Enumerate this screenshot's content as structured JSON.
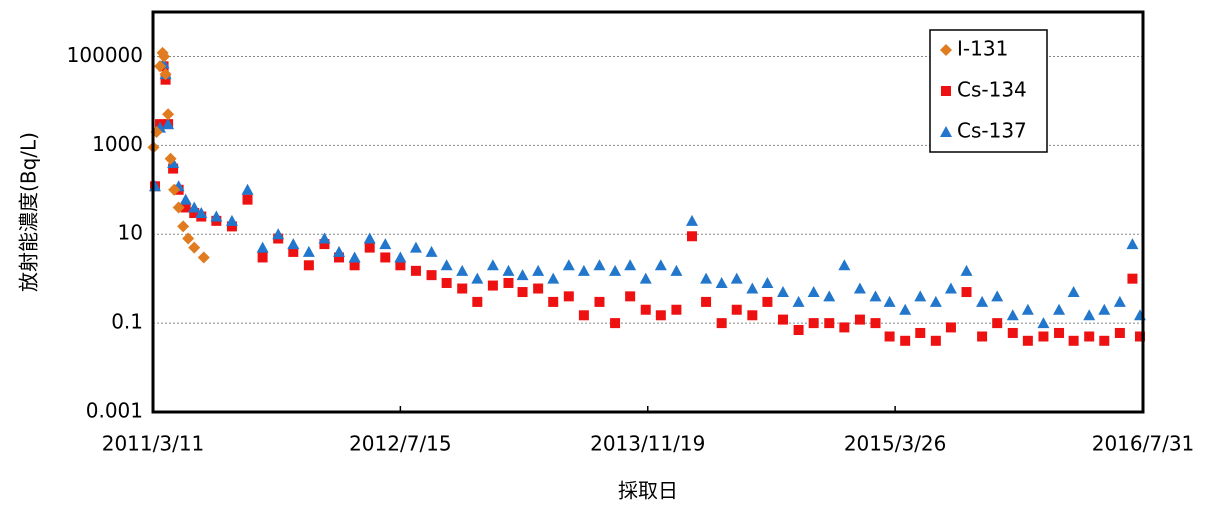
{
  "chart_data": {
    "type": "scatter",
    "xlabel": "採取日",
    "ylabel": "放射能濃度(Bq/L)",
    "xlim": [
      "2011/3/11",
      "2016/7/31"
    ],
    "xticks": [
      "2011/3/11",
      "2012/7/15",
      "2013/11/19",
      "2015/3/26",
      "2016/7/31"
    ],
    "ylim": [
      0.001,
      1000000
    ],
    "yticks": [
      0.001,
      0.1,
      10,
      1000,
      100000
    ],
    "log_y": true,
    "grid": true,
    "legend": "upper right",
    "series": [
      {
        "name": "I-131",
        "color": "#e07b20",
        "marker": "diamond",
        "x": [
          "2011/3/12",
          "2011/3/18",
          "2011/3/25",
          "2011/3/30",
          "2011/4/2",
          "2011/4/5",
          "2011/4/10",
          "2011/4/15",
          "2011/4/22",
          "2011/5/1",
          "2011/5/10",
          "2011/5/20",
          "2011/6/1",
          "2011/6/20"
        ],
        "values": [
          900,
          2000,
          60000,
          120000,
          100000,
          40000,
          5000,
          500,
          100,
          40,
          15,
          8,
          5,
          3
        ]
      },
      {
        "name": "Cs-134",
        "color": "#ee1111",
        "marker": "square",
        "x": [
          "2011/3/15",
          "2011/3/25",
          "2011/4/1",
          "2011/4/5",
          "2011/4/10",
          "2011/4/20",
          "2011/5/1",
          "2011/5/15",
          "2011/6/1",
          "2011/6/15",
          "2011/7/15",
          "2011/8/15",
          "2011/9/15",
          "2011/10/15",
          "2011/11/15",
          "2011/12/15",
          "2012/1/15",
          "2012/2/15",
          "2012/3/15",
          "2012/4/15",
          "2012/5/15",
          "2012/6/15",
          "2012/7/15",
          "2012/8/15",
          "2012/9/15",
          "2012/10/15",
          "2012/11/15",
          "2012/12/15",
          "2013/1/15",
          "2013/2/15",
          "2013/3/15",
          "2013/4/15",
          "2013/5/15",
          "2013/6/15",
          "2013/7/15",
          "2013/8/15",
          "2013/9/15",
          "2013/10/15",
          "2013/11/15",
          "2013/12/15",
          "2014/1/15",
          "2014/2/15",
          "2014/3/15",
          "2014/4/15",
          "2014/5/15",
          "2014/6/15",
          "2014/7/15",
          "2014/8/15",
          "2014/9/15",
          "2014/10/15",
          "2014/11/15",
          "2014/12/15",
          "2015/1/15",
          "2015/2/15",
          "2015/3/15",
          "2015/4/15",
          "2015/5/15",
          "2015/6/15",
          "2015/7/15",
          "2015/8/15",
          "2015/9/15",
          "2015/10/15",
          "2015/11/15",
          "2015/12/15",
          "2016/1/15",
          "2016/2/15",
          "2016/3/15",
          "2016/4/15",
          "2016/5/15",
          "2016/6/15",
          "2016/7/10",
          "2016/7/25"
        ],
        "values": [
          120,
          3000,
          60000,
          30000,
          3000,
          300,
          100,
          40,
          30,
          25,
          20,
          15,
          60,
          3,
          8,
          4,
          2,
          6,
          3,
          2,
          5,
          3,
          2,
          1.5,
          1.2,
          0.8,
          0.6,
          0.3,
          0.7,
          0.8,
          0.5,
          0.6,
          0.3,
          0.4,
          0.15,
          0.3,
          0.1,
          0.4,
          0.2,
          0.15,
          0.2,
          9,
          0.3,
          0.1,
          0.2,
          0.15,
          0.3,
          0.12,
          0.07,
          0.1,
          0.1,
          0.08,
          0.12,
          0.1,
          0.05,
          0.04,
          0.06,
          0.04,
          0.08,
          0.5,
          0.05,
          0.1,
          0.06,
          0.04,
          0.05,
          0.06,
          0.04,
          0.05,
          0.04,
          0.06,
          1,
          0.05
        ]
      },
      {
        "name": "Cs-137",
        "color": "#2277cc",
        "marker": "triangle",
        "x": [
          "2011/3/15",
          "2011/3/25",
          "2011/4/1",
          "2011/4/5",
          "2011/4/10",
          "2011/4/20",
          "2011/5/1",
          "2011/5/15",
          "2011/6/1",
          "2011/6/15",
          "2011/7/15",
          "2011/8/15",
          "2011/9/15",
          "2011/10/15",
          "2011/11/15",
          "2011/12/15",
          "2012/1/15",
          "2012/2/15",
          "2012/3/15",
          "2012/4/15",
          "2012/5/15",
          "2012/6/15",
          "2012/7/15",
          "2012/8/15",
          "2012/9/15",
          "2012/10/15",
          "2012/11/15",
          "2012/12/15",
          "2013/1/15",
          "2013/2/15",
          "2013/3/15",
          "2013/4/15",
          "2013/5/15",
          "2013/6/15",
          "2013/7/15",
          "2013/8/15",
          "2013/9/15",
          "2013/10/15",
          "2013/11/15",
          "2013/12/15",
          "2014/1/15",
          "2014/2/15",
          "2014/3/15",
          "2014/4/15",
          "2014/5/15",
          "2014/6/15",
          "2014/7/15",
          "2014/8/15",
          "2014/9/15",
          "2014/10/15",
          "2014/11/15",
          "2014/12/15",
          "2015/1/15",
          "2015/2/15",
          "2015/3/15",
          "2015/4/15",
          "2015/5/15",
          "2015/6/15",
          "2015/7/15",
          "2015/8/15",
          "2015/9/15",
          "2015/10/15",
          "2015/11/15",
          "2015/12/15",
          "2016/1/15",
          "2016/2/15",
          "2016/3/15",
          "2016/4/15",
          "2016/5/15",
          "2016/6/15",
          "2016/7/10",
          "2016/7/25"
        ],
        "values": [
          120,
          2500,
          70000,
          40000,
          3000,
          400,
          120,
          60,
          40,
          30,
          25,
          20,
          100,
          5,
          10,
          6,
          4,
          8,
          4,
          3,
          8,
          6,
          3,
          5,
          4,
          2,
          1.5,
          1,
          2,
          1.5,
          1.2,
          1.5,
          1,
          2,
          1.5,
          2,
          1.5,
          2,
          1,
          2,
          1.5,
          20,
          1,
          0.8,
          1,
          0.6,
          0.8,
          0.5,
          0.3,
          0.5,
          0.4,
          2,
          0.6,
          0.4,
          0.3,
          0.2,
          0.4,
          0.3,
          0.6,
          1.5,
          0.3,
          0.4,
          0.15,
          0.2,
          0.1,
          0.2,
          0.5,
          0.15,
          0.2,
          0.3,
          6,
          0.15
        ]
      }
    ]
  }
}
